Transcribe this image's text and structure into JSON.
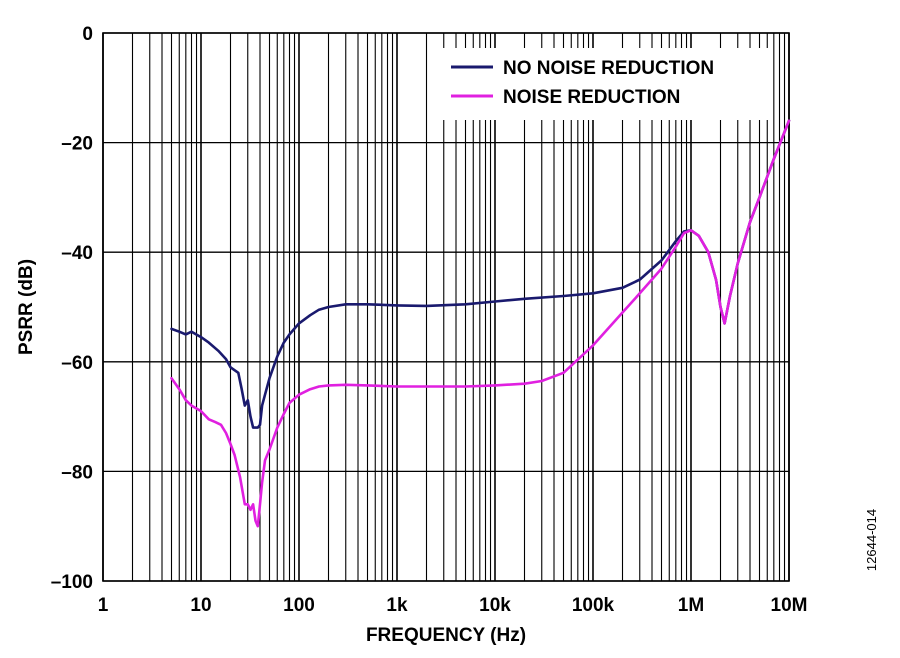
{
  "figure_id": "12644-014",
  "chart_data": {
    "type": "line",
    "title": "",
    "xlabel": "FREQUENCY (Hz)",
    "ylabel": "PSRR (dB)",
    "x_scale": "log",
    "xlim": [
      1,
      10000000
    ],
    "ylim": [
      -100,
      0
    ],
    "grid": true,
    "legend_position": "top-right",
    "x_ticks": [
      {
        "value": 1,
        "label": "1"
      },
      {
        "value": 10,
        "label": "10"
      },
      {
        "value": 100,
        "label": "100"
      },
      {
        "value": 1000,
        "label": "1k"
      },
      {
        "value": 10000,
        "label": "10k"
      },
      {
        "value": 100000,
        "label": "100k"
      },
      {
        "value": 1000000,
        "label": "1M"
      },
      {
        "value": 10000000,
        "label": "10M"
      }
    ],
    "y_ticks": [
      {
        "value": 0,
        "label": "0"
      },
      {
        "value": -20,
        "label": "–20"
      },
      {
        "value": -40,
        "label": "–40"
      },
      {
        "value": -60,
        "label": "–60"
      },
      {
        "value": -80,
        "label": "–80"
      },
      {
        "value": -100,
        "label": "–100"
      }
    ],
    "series": [
      {
        "name": "NO NOISE REDUCTION",
        "color": "#1a1a6e",
        "x": [
          5,
          6,
          7,
          8,
          10,
          12,
          15,
          18,
          20,
          24,
          26,
          28,
          30,
          32,
          34,
          36,
          38,
          40,
          42,
          45,
          50,
          60,
          70,
          80,
          100,
          130,
          160,
          200,
          300,
          500,
          1000,
          2000,
          5000,
          10000,
          20000,
          50000,
          100000,
          200000,
          300000,
          500000,
          700000,
          850000,
          1000000,
          1200000,
          1500000,
          1800000,
          2000000,
          2200000,
          2500000,
          3000000,
          4000000,
          5000000,
          7000000,
          10000000
        ],
        "y": [
          -54,
          -54.5,
          -55,
          -54.5,
          -55.5,
          -56.5,
          -58,
          -59.5,
          -61,
          -62,
          -65,
          -68,
          -67,
          -70,
          -72,
          -72,
          -72,
          -71.5,
          -68,
          -66,
          -63,
          -59,
          -56.5,
          -55,
          -53,
          -51.5,
          -50.5,
          -50,
          -49.5,
          -49.5,
          -49.7,
          -49.8,
          -49.5,
          -49,
          -48.5,
          -48,
          -47.5,
          -46.5,
          -45,
          -41.5,
          -38,
          -36.2,
          -36,
          -37,
          -40,
          -45,
          -50,
          -53,
          -48,
          -42,
          -34.5,
          -30,
          -23,
          -16
        ]
      },
      {
        "name": "NOISE REDUCTION",
        "color": "#e020e0",
        "x": [
          5,
          6,
          7,
          8,
          10,
          12,
          14,
          16,
          18,
          20,
          22,
          25,
          28,
          30,
          32,
          34,
          36,
          38,
          40,
          42,
          45,
          50,
          60,
          70,
          80,
          100,
          130,
          160,
          200,
          300,
          500,
          1000,
          2000,
          5000,
          10000,
          20000,
          30000,
          50000,
          100000,
          200000,
          300000,
          500000,
          700000,
          850000,
          1000000,
          1200000,
          1500000,
          1800000,
          2000000,
          2200000,
          2500000,
          3000000,
          4000000,
          5000000,
          7000000,
          10000000
        ],
        "y": [
          -63,
          -65,
          -67,
          -68,
          -69,
          -70.5,
          -71,
          -71.5,
          -73,
          -75,
          -77,
          -81,
          -86,
          -86,
          -87,
          -86,
          -89,
          -90,
          -86,
          -82,
          -78,
          -76,
          -72,
          -69.5,
          -67.5,
          -66,
          -65,
          -64.5,
          -64.3,
          -64.2,
          -64.3,
          -64.5,
          -64.5,
          -64.5,
          -64.3,
          -64,
          -63.5,
          -62,
          -57,
          -51,
          -47.5,
          -43,
          -39,
          -36.5,
          -36,
          -37,
          -40,
          -45,
          -50,
          -53,
          -48,
          -42,
          -34.5,
          -30,
          -23,
          -16
        ]
      }
    ]
  }
}
